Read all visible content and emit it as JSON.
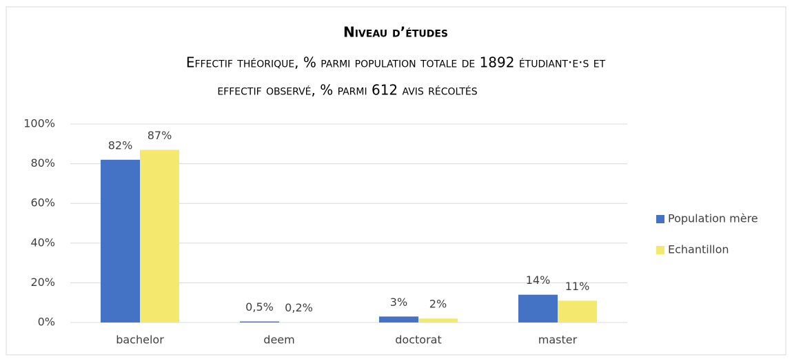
{
  "chart_data": {
    "type": "bar",
    "title": "Niveau d’études",
    "subtitle": [
      "Effectif théorique, % parmi population totale de 1892 étudiant·e·s et",
      "effectif observé, % parmi 612 avis récoltés"
    ],
    "categories": [
      "bachelor",
      "deem",
      "doctorat",
      "master"
    ],
    "series": [
      {
        "name": "Population mère",
        "color": "#4472c4",
        "values": [
          82,
          0.5,
          3,
          14
        ],
        "value_labels": [
          "82%",
          "0,5%",
          "3%",
          "14%"
        ]
      },
      {
        "name": "Echantillon",
        "color": "#f4e96e",
        "values": [
          87,
          0.2,
          2,
          11
        ],
        "value_labels": [
          "87%",
          "0,2%",
          "2%",
          "11%"
        ]
      }
    ],
    "ylim": [
      0,
      100
    ],
    "yticks": [
      {
        "value": 0,
        "label": "0%"
      },
      {
        "value": 20,
        "label": "20%"
      },
      {
        "value": 40,
        "label": "40%"
      },
      {
        "value": 60,
        "label": "60%"
      },
      {
        "value": 80,
        "label": "80%"
      },
      {
        "value": 100,
        "label": "100%"
      }
    ],
    "grid": true,
    "legend": "right"
  }
}
